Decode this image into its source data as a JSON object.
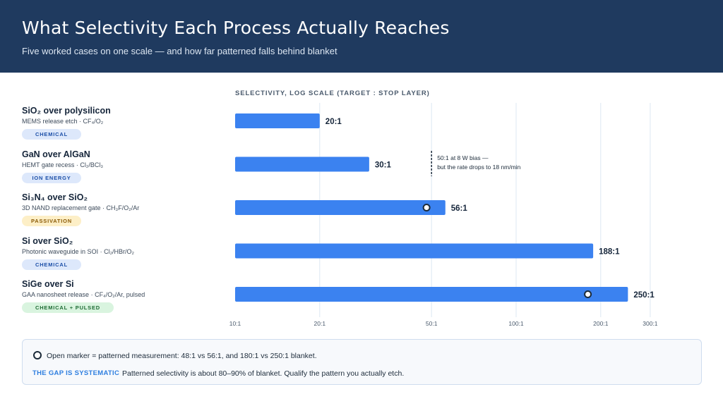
{
  "header": {
    "title": "What Selectivity Each Process Actually Reaches",
    "subtitle": "Five worked cases on one scale — and how far patterned falls behind blanket"
  },
  "chart_data": {
    "type": "bar",
    "orientation": "horizontal",
    "axis_title": "SELECTIVITY, LOG SCALE (TARGET : STOP LAYER)",
    "scale": "log",
    "xlim": [
      10,
      300
    ],
    "ticks": [
      {
        "value": 10,
        "label": "10:1"
      },
      {
        "value": 20,
        "label": "20:1"
      },
      {
        "value": 50,
        "label": "50:1"
      },
      {
        "value": 100,
        "label": "100:1"
      },
      {
        "value": 200,
        "label": "200:1"
      },
      {
        "value": 300,
        "label": "300:1"
      }
    ],
    "grid": true,
    "bar_color": "#3b82f0",
    "rows": [
      {
        "name": "SiO₂ over polysilicon",
        "sub": "MEMS release etch · CF₄/O₂",
        "badge": "CHEMICAL",
        "badge_style": "blue",
        "value": 20,
        "value_label": "20:1",
        "patterned": null
      },
      {
        "name": "GaN over AlGaN",
        "sub": "HEMT gate recess · Cl₂/BCl₃",
        "badge": "ION ENERGY",
        "badge_style": "blue",
        "value": 30,
        "value_label": "30:1",
        "patterned": null
      },
      {
        "name": "Si₃N₄ over SiO₂",
        "sub": "3D NAND replacement gate · CH₃F/O₂/Ar",
        "badge": "PASSIVATION",
        "badge_style": "amber",
        "value": 56,
        "value_label": "56:1",
        "patterned": 48
      },
      {
        "name": "Si over SiO₂",
        "sub": "Photonic waveguide in SOI · Cl₂/HBr/O₂",
        "badge": "CHEMICAL",
        "badge_style": "blue",
        "value": 188,
        "value_label": "188:1",
        "patterned": null
      },
      {
        "name": "SiGe over Si",
        "sub": "GAA nanosheet release · CF₄/O₂/Ar, pulsed",
        "badge": "CHEMICAL + PULSED",
        "badge_style": "green",
        "value": 250,
        "value_label": "250:1",
        "patterned": 180
      }
    ],
    "annotation": {
      "value": 50,
      "line1": "50:1 at 8 W bias —",
      "line2": "but the rate drops to 18 nm/min"
    }
  },
  "legend": {
    "marker_text": "Open marker = patterned measurement: 48:1 vs 56:1, and 180:1 vs 250:1 blanket.",
    "gap_label": "THE GAP IS SYSTEMATIC",
    "gap_text": "Patterned selectivity is about 80–90% of blanket. Qualify the pattern you actually etch."
  }
}
